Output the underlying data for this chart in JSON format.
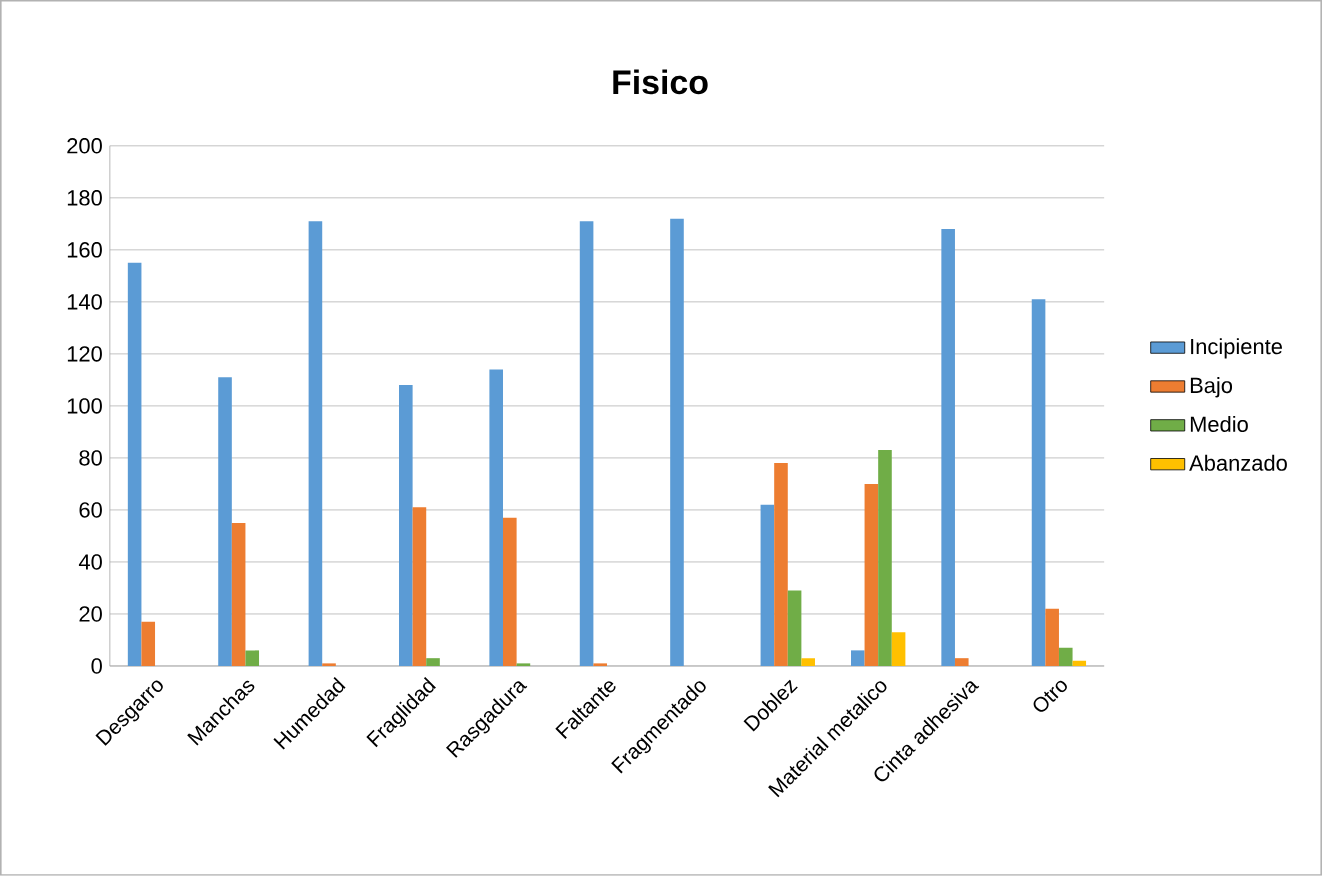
{
  "chart_data": {
    "type": "bar",
    "title": "Fisico",
    "categories": [
      "Desgarro",
      "Manchas",
      "Humedad",
      "Fraglidad",
      "Rasgadura",
      "Faltante",
      "Fragmentado",
      "Doblez",
      "Material metalico",
      "Cinta adhesiva",
      "Otro"
    ],
    "series": [
      {
        "name": "Incipiente",
        "color": "#5b9bd5",
        "values": [
          155,
          111,
          171,
          108,
          114,
          171,
          172,
          62,
          6,
          168,
          141
        ]
      },
      {
        "name": "Bajo",
        "color": "#ed7d31",
        "values": [
          17,
          55,
          1,
          61,
          57,
          1,
          0,
          78,
          70,
          3,
          22
        ]
      },
      {
        "name": "Medio",
        "color": "#70ad47",
        "values": [
          0,
          6,
          0,
          3,
          1,
          0,
          0,
          29,
          83,
          0,
          7
        ]
      },
      {
        "name": "Abanzado",
        "color": "#ffc000",
        "values": [
          0,
          0,
          0,
          0,
          0,
          0,
          0,
          3,
          13,
          0,
          2
        ]
      }
    ],
    "ylim": [
      0,
      200
    ],
    "yticks": [
      0,
      20,
      40,
      60,
      80,
      100,
      120,
      140,
      160,
      180,
      200
    ],
    "grid": "y",
    "legend": "right"
  }
}
